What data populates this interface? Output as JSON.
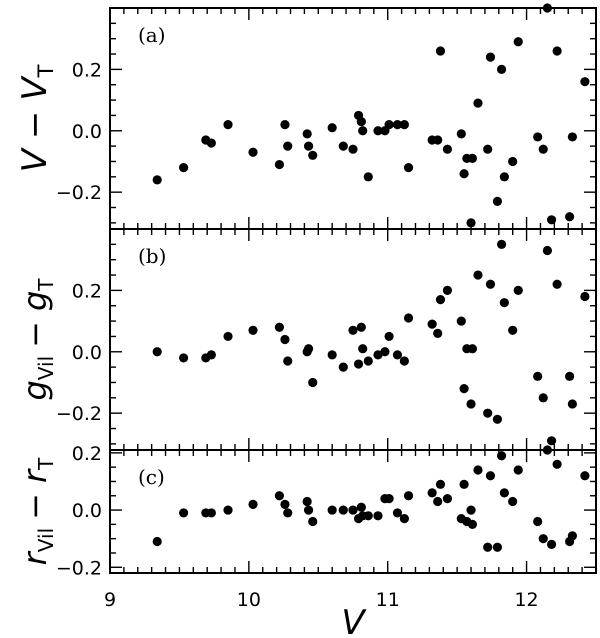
{
  "chart_data": [
    {
      "type": "scatter",
      "panel": "(a)",
      "ylabel": {
        "a": "V",
        "op": "−",
        "b": "V",
        "b_sub": "T"
      },
      "ylim": [
        -0.32,
        0.4
      ],
      "yticks": [
        -0.2,
        0.0,
        0.2
      ],
      "ytick_labels": [
        "−0.2",
        "0.0",
        "0.2"
      ],
      "points": [
        [
          9.34,
          -0.16
        ],
        [
          9.53,
          -0.12
        ],
        [
          9.69,
          -0.03
        ],
        [
          9.73,
          -0.04
        ],
        [
          9.85,
          0.02
        ],
        [
          10.03,
          -0.07
        ],
        [
          10.22,
          -0.11
        ],
        [
          10.26,
          0.02
        ],
        [
          10.28,
          -0.05
        ],
        [
          10.42,
          -0.01
        ],
        [
          10.43,
          -0.05
        ],
        [
          10.46,
          -0.08
        ],
        [
          10.6,
          0.01
        ],
        [
          10.68,
          -0.05
        ],
        [
          10.75,
          -0.06
        ],
        [
          10.79,
          0.05
        ],
        [
          10.81,
          0.03
        ],
        [
          10.82,
          0.0
        ],
        [
          10.86,
          -0.15
        ],
        [
          10.93,
          0.0
        ],
        [
          10.98,
          0.0
        ],
        [
          11.01,
          0.02
        ],
        [
          11.07,
          0.02
        ],
        [
          11.12,
          0.02
        ],
        [
          11.15,
          -0.12
        ],
        [
          11.32,
          -0.03
        ],
        [
          11.36,
          -0.03
        ],
        [
          11.38,
          0.26
        ],
        [
          11.43,
          -0.06
        ],
        [
          11.53,
          -0.01
        ],
        [
          11.55,
          -0.14
        ],
        [
          11.57,
          -0.09
        ],
        [
          11.6,
          -0.3
        ],
        [
          11.61,
          -0.09
        ],
        [
          11.65,
          0.09
        ],
        [
          11.72,
          -0.06
        ],
        [
          11.74,
          0.24
        ],
        [
          11.79,
          -0.23
        ],
        [
          11.82,
          0.2
        ],
        [
          11.84,
          -0.15
        ],
        [
          11.9,
          -0.1
        ],
        [
          11.94,
          0.29
        ],
        [
          12.08,
          -0.02
        ],
        [
          12.12,
          -0.06
        ],
        [
          12.15,
          0.4
        ],
        [
          12.18,
          -0.29
        ],
        [
          12.22,
          0.26
        ],
        [
          12.31,
          -0.28
        ],
        [
          12.33,
          -0.02
        ],
        [
          12.42,
          0.16
        ]
      ]
    },
    {
      "type": "scatter",
      "panel": "(b)",
      "ylabel": {
        "a": "g",
        "a_sub": "Vil",
        "op": "−",
        "b": "g",
        "b_sub": "T"
      },
      "ylim": [
        -0.32,
        0.4
      ],
      "yticks": [
        -0.2,
        0.0,
        0.2
      ],
      "ytick_labels": [
        "−0.2",
        "0.0",
        "0.2"
      ],
      "points": [
        [
          9.34,
          0.0
        ],
        [
          9.53,
          -0.02
        ],
        [
          9.69,
          -0.02
        ],
        [
          9.73,
          -0.01
        ],
        [
          9.85,
          0.05
        ],
        [
          10.03,
          0.07
        ],
        [
          10.22,
          0.08
        ],
        [
          10.26,
          0.04
        ],
        [
          10.28,
          -0.03
        ],
        [
          10.42,
          0.0
        ],
        [
          10.43,
          0.01
        ],
        [
          10.46,
          -0.1
        ],
        [
          10.6,
          -0.01
        ],
        [
          10.68,
          -0.05
        ],
        [
          10.75,
          0.07
        ],
        [
          10.79,
          -0.04
        ],
        [
          10.81,
          0.08
        ],
        [
          10.82,
          0.01
        ],
        [
          10.86,
          -0.03
        ],
        [
          10.93,
          -0.01
        ],
        [
          10.98,
          0.0
        ],
        [
          11.01,
          0.05
        ],
        [
          11.07,
          -0.01
        ],
        [
          11.12,
          -0.03
        ],
        [
          11.15,
          0.11
        ],
        [
          11.32,
          0.09
        ],
        [
          11.36,
          0.06
        ],
        [
          11.38,
          0.17
        ],
        [
          11.43,
          0.2
        ],
        [
          11.53,
          0.1
        ],
        [
          11.55,
          -0.12
        ],
        [
          11.57,
          0.01
        ],
        [
          11.6,
          -0.17
        ],
        [
          11.61,
          0.01
        ],
        [
          11.65,
          0.25
        ],
        [
          11.72,
          -0.2
        ],
        [
          11.74,
          0.22
        ],
        [
          11.79,
          -0.22
        ],
        [
          11.82,
          0.35
        ],
        [
          11.84,
          0.16
        ],
        [
          11.9,
          0.07
        ],
        [
          11.94,
          0.2
        ],
        [
          12.08,
          -0.08
        ],
        [
          12.12,
          -0.15
        ],
        [
          12.15,
          0.33
        ],
        [
          12.18,
          -0.29
        ],
        [
          12.22,
          0.22
        ],
        [
          12.31,
          -0.08
        ],
        [
          12.33,
          -0.17
        ],
        [
          12.42,
          0.18
        ]
      ]
    },
    {
      "type": "scatter",
      "panel": "(c)",
      "ylabel": {
        "a": "r",
        "a_sub": "Vil",
        "op": "−",
        "b": "r",
        "b_sub": "T"
      },
      "xlabel": "V",
      "xlim": [
        9.0,
        12.5
      ],
      "xticks": [
        9,
        10,
        11,
        12
      ],
      "xtick_labels": [
        "9",
        "10",
        "11",
        "12"
      ],
      "ylim": [
        -0.22,
        0.21
      ],
      "yticks": [
        -0.2,
        0.0,
        0.2
      ],
      "ytick_labels": [
        "−0.2",
        "0.0",
        "0.2"
      ],
      "points": [
        [
          9.34,
          -0.11
        ],
        [
          9.53,
          -0.01
        ],
        [
          9.69,
          -0.01
        ],
        [
          9.73,
          -0.01
        ],
        [
          9.85,
          0.0
        ],
        [
          10.03,
          0.02
        ],
        [
          10.22,
          0.05
        ],
        [
          10.26,
          0.02
        ],
        [
          10.28,
          -0.01
        ],
        [
          10.42,
          0.03
        ],
        [
          10.43,
          0.0
        ],
        [
          10.46,
          -0.04
        ],
        [
          10.6,
          0.0
        ],
        [
          10.68,
          0.0
        ],
        [
          10.75,
          0.0
        ],
        [
          10.79,
          -0.03
        ],
        [
          10.81,
          0.01
        ],
        [
          10.82,
          -0.02
        ],
        [
          10.86,
          -0.02
        ],
        [
          10.93,
          -0.02
        ],
        [
          10.98,
          0.04
        ],
        [
          11.01,
          0.04
        ],
        [
          11.07,
          -0.01
        ],
        [
          11.12,
          -0.03
        ],
        [
          11.15,
          0.05
        ],
        [
          11.32,
          0.06
        ],
        [
          11.36,
          0.03
        ],
        [
          11.38,
          0.09
        ],
        [
          11.43,
          0.04
        ],
        [
          11.53,
          -0.03
        ],
        [
          11.55,
          0.09
        ],
        [
          11.57,
          -0.04
        ],
        [
          11.6,
          0.0
        ],
        [
          11.61,
          -0.05
        ],
        [
          11.65,
          0.14
        ],
        [
          11.72,
          -0.13
        ],
        [
          11.74,
          0.12
        ],
        [
          11.79,
          -0.13
        ],
        [
          11.82,
          0.19
        ],
        [
          11.84,
          0.06
        ],
        [
          11.9,
          0.03
        ],
        [
          11.94,
          0.14
        ],
        [
          12.08,
          -0.04
        ],
        [
          12.12,
          -0.1
        ],
        [
          12.15,
          0.21
        ],
        [
          12.18,
          -0.12
        ],
        [
          12.22,
          0.16
        ],
        [
          12.31,
          -0.11
        ],
        [
          12.33,
          -0.09
        ],
        [
          12.42,
          0.12
        ]
      ]
    }
  ]
}
